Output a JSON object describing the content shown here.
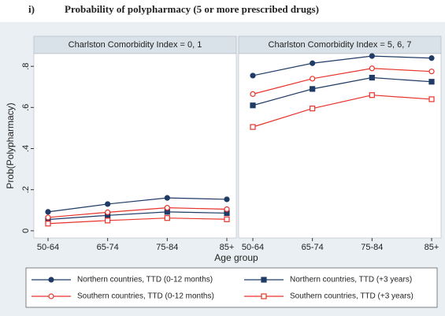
{
  "chart_data": {
    "type": "line",
    "label": "i)",
    "title": "Probability of polypharmacy (5 or more prescribed drugs)",
    "y_label": "Prob(Polypharmacy)",
    "x_label": "Age group",
    "facets": [
      "Charlston Comorbidity Index = 0, 1",
      "Charlston Comorbidity Index = 5, 6, 7"
    ],
    "categories": [
      "50-64",
      "65-74",
      "75-84",
      "85+"
    ],
    "ylim": [
      -0.035,
      0.862
    ],
    "yticks": [
      0,
      {
        "value": 0.2,
        "label": ".2"
      },
      {
        "value": 0.4,
        "label": ".4"
      },
      {
        "value": 0.6,
        "label": ".6"
      },
      {
        "value": 0.8,
        "label": ".8"
      }
    ],
    "series": [
      {
        "name": "Northern countries, TTD (0-12 months)",
        "color": "#1f3b66",
        "marker": "circle",
        "filled": true,
        "values": [
          [
            0.092,
            0.13,
            0.16,
            0.153
          ],
          [
            0.755,
            0.815,
            0.85,
            0.84
          ]
        ]
      },
      {
        "name": "Northern countries, TTD (+3 years)",
        "color": "#1f3b66",
        "marker": "square",
        "filled": true,
        "values": [
          [
            0.055,
            0.075,
            0.092,
            0.086
          ],
          [
            0.61,
            0.69,
            0.745,
            0.725
          ]
        ]
      },
      {
        "name": "Southern countries, TTD (0-12 months)",
        "color": "#e8332a",
        "marker": "circle",
        "filled": false,
        "values": [
          [
            0.065,
            0.09,
            0.112,
            0.105
          ],
          [
            0.665,
            0.74,
            0.79,
            0.775
          ]
        ]
      },
      {
        "name": "Southern countries, TTD (+3 years)",
        "color": "#e8332a",
        "marker": "square",
        "filled": false,
        "values": [
          [
            0.035,
            0.05,
            0.062,
            0.056
          ],
          [
            0.505,
            0.595,
            0.66,
            0.64
          ]
        ]
      }
    ]
  }
}
